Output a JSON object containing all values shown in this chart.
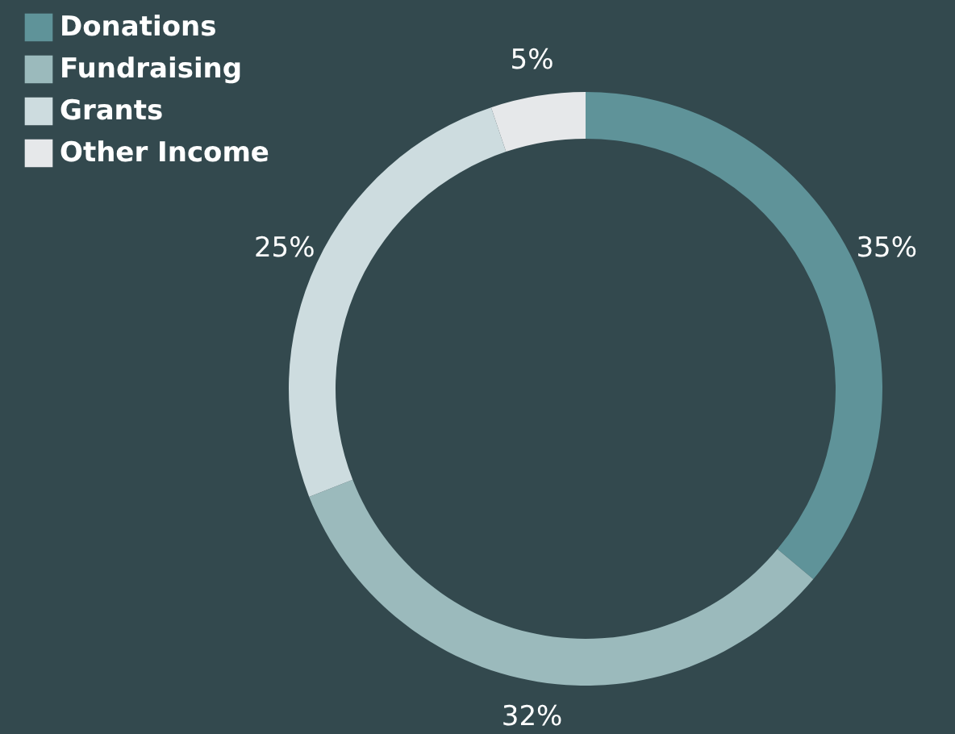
{
  "chart_data": {
    "type": "donut",
    "categories": [
      "Donations",
      "Fundraising",
      "Grants",
      "Other Income"
    ],
    "values": [
      35,
      32,
      25,
      5
    ],
    "value_labels": [
      "35%",
      "32%",
      "25%",
      "5%"
    ],
    "colors": [
      "#5f9399",
      "#9bbabc",
      "#cddcdf",
      "#e6e8ea"
    ],
    "legend": "top left"
  }
}
